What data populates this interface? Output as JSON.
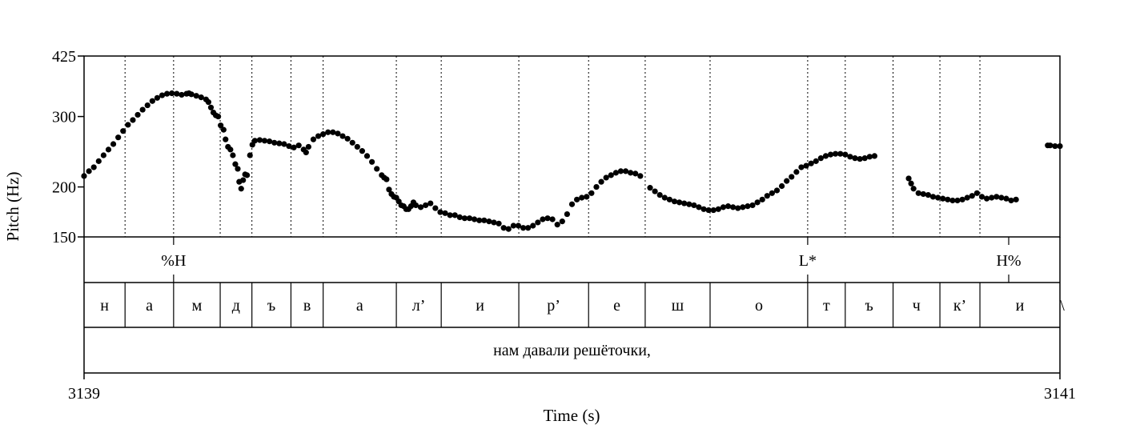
{
  "chart_data": {
    "type": "scatter",
    "xlabel": "Time (s)",
    "ylabel": "Pitch (Hz)",
    "xlim": [
      3139,
      3141
    ],
    "ylim": [
      150,
      425
    ],
    "y_scale": "log",
    "x_tick_labels": [
      "3139",
      "3141"
    ],
    "y_ticks": [
      {
        "value": 150,
        "label": "150"
      },
      {
        "value": 200,
        "label": "200"
      },
      {
        "value": 300,
        "label": "300"
      },
      {
        "value": 425,
        "label": "425"
      }
    ],
    "tone_tier": [
      {
        "time": 3139.1835,
        "label": "%H"
      },
      {
        "time": 3140.483,
        "label": "L*"
      },
      {
        "time": 3140.895,
        "label": "H%"
      }
    ],
    "segment_tier": [
      {
        "start": 3139.0,
        "end": 3139.084,
        "label": "н"
      },
      {
        "start": 3139.084,
        "end": 3139.1835,
        "label": "а"
      },
      {
        "start": 3139.1835,
        "end": 3139.279,
        "label": "м"
      },
      {
        "start": 3139.279,
        "end": 3139.344,
        "label": "д"
      },
      {
        "start": 3139.344,
        "end": 3139.424,
        "label": "ъ"
      },
      {
        "start": 3139.424,
        "end": 3139.49,
        "label": "в"
      },
      {
        "start": 3139.49,
        "end": 3139.64,
        "label": "а"
      },
      {
        "start": 3139.64,
        "end": 3139.732,
        "label": "л’"
      },
      {
        "start": 3139.732,
        "end": 3139.891,
        "label": "и"
      },
      {
        "start": 3139.891,
        "end": 3140.034,
        "label": "р’"
      },
      {
        "start": 3140.034,
        "end": 3140.15,
        "label": "е"
      },
      {
        "start": 3140.15,
        "end": 3140.283,
        "label": "ш"
      },
      {
        "start": 3140.283,
        "end": 3140.483,
        "label": "о"
      },
      {
        "start": 3140.483,
        "end": 3140.56,
        "label": "т"
      },
      {
        "start": 3140.56,
        "end": 3140.658,
        "label": "ъ"
      },
      {
        "start": 3140.658,
        "end": 3140.754,
        "label": "ч"
      },
      {
        "start": 3140.754,
        "end": 3140.836,
        "label": "к’"
      },
      {
        "start": 3140.836,
        "end": 3141.0,
        "label": "и"
      }
    ],
    "trailing_mark": "\\",
    "word_tier": [
      {
        "start": 3139.0,
        "end": 3141.0,
        "label": "нам давали решёточки,"
      }
    ],
    "series": [
      {
        "points": [
          [
            3139.0,
            213
          ],
          [
            3139.01,
            219
          ],
          [
            3139.02,
            224
          ],
          [
            3139.03,
            232
          ],
          [
            3139.04,
            240
          ],
          [
            3139.05,
            248
          ],
          [
            3139.06,
            256
          ],
          [
            3139.07,
            266
          ],
          [
            3139.08,
            276
          ],
          [
            3139.09,
            286
          ],
          [
            3139.1,
            294
          ],
          [
            3139.11,
            303
          ],
          [
            3139.12,
            312
          ],
          [
            3139.13,
            320
          ],
          [
            3139.14,
            328
          ],
          [
            3139.15,
            334
          ],
          [
            3139.16,
            339
          ],
          [
            3139.17,
            342
          ],
          [
            3139.18,
            343
          ],
          [
            3139.19,
            342
          ],
          [
            3139.2,
            340
          ],
          [
            3139.21,
            342
          ],
          [
            3139.215,
            343
          ],
          [
            3139.22,
            341
          ],
          [
            3139.23,
            338
          ],
          [
            3139.24,
            335
          ],
          [
            3139.25,
            331
          ],
          [
            3139.255,
            326
          ],
          [
            3139.26,
            316
          ],
          [
            3139.265,
            307
          ],
          [
            3139.27,
            302
          ],
          [
            3139.275,
            300
          ],
          [
            3139.28,
            285
          ],
          [
            3139.286,
            278
          ],
          [
            3139.29,
            263
          ],
          [
            3139.295,
            252
          ],
          [
            3139.3,
            248
          ],
          [
            3139.305,
            240
          ],
          [
            3139.31,
            228
          ],
          [
            3139.315,
            222
          ],
          [
            3139.318,
            206
          ],
          [
            3139.322,
            198
          ],
          [
            3139.326,
            208
          ],
          [
            3139.33,
            215
          ],
          [
            3139.334,
            214
          ],
          [
            3139.34,
            240
          ],
          [
            3139.345,
            255
          ],
          [
            3139.35,
            261
          ],
          [
            3139.36,
            262
          ],
          [
            3139.37,
            261
          ],
          [
            3139.38,
            260
          ],
          [
            3139.39,
            258
          ],
          [
            3139.4,
            257
          ],
          [
            3139.41,
            256
          ],
          [
            3139.42,
            253
          ],
          [
            3139.43,
            251
          ],
          [
            3139.44,
            254
          ],
          [
            3139.45,
            248
          ],
          [
            3139.455,
            244
          ],
          [
            3139.46,
            252
          ],
          [
            3139.47,
            263
          ],
          [
            3139.48,
            268
          ],
          [
            3139.49,
            271
          ],
          [
            3139.5,
            274
          ],
          [
            3139.51,
            274
          ],
          [
            3139.52,
            272
          ],
          [
            3139.53,
            268
          ],
          [
            3139.54,
            264
          ],
          [
            3139.55,
            258
          ],
          [
            3139.56,
            252
          ],
          [
            3139.57,
            246
          ],
          [
            3139.58,
            239
          ],
          [
            3139.59,
            231
          ],
          [
            3139.6,
            222
          ],
          [
            3139.61,
            214
          ],
          [
            3139.615,
            211
          ],
          [
            3139.62,
            209
          ],
          [
            3139.625,
            197
          ],
          [
            3139.63,
            192
          ],
          [
            3139.635,
            189
          ],
          [
            3139.64,
            188
          ],
          [
            3139.645,
            184
          ],
          [
            3139.65,
            180
          ],
          [
            3139.655,
            179
          ],
          [
            3139.66,
            176
          ],
          [
            3139.665,
            176
          ],
          [
            3139.67,
            179
          ],
          [
            3139.675,
            183
          ],
          [
            3139.68,
            180
          ],
          [
            3139.69,
            178
          ],
          [
            3139.7,
            180
          ],
          [
            3139.71,
            182
          ],
          [
            3139.72,
            177
          ],
          [
            3139.73,
            173
          ],
          [
            3139.74,
            172
          ],
          [
            3139.75,
            170
          ],
          [
            3139.76,
            170
          ],
          [
            3139.77,
            168
          ],
          [
            3139.78,
            167
          ],
          [
            3139.79,
            167
          ],
          [
            3139.8,
            166
          ],
          [
            3139.81,
            165
          ],
          [
            3139.82,
            165
          ],
          [
            3139.83,
            164
          ],
          [
            3139.84,
            163
          ],
          [
            3139.85,
            162
          ],
          [
            3139.86,
            158
          ],
          [
            3139.87,
            157
          ],
          [
            3139.88,
            160
          ],
          [
            3139.89,
            160
          ],
          [
            3139.9,
            158
          ],
          [
            3139.91,
            158
          ],
          [
            3139.92,
            160
          ],
          [
            3139.93,
            163
          ],
          [
            3139.94,
            166
          ],
          [
            3139.95,
            167
          ],
          [
            3139.96,
            166
          ],
          [
            3139.97,
            161
          ],
          [
            3139.98,
            164
          ],
          [
            3139.99,
            171
          ],
          [
            3140.0,
            181
          ],
          [
            3140.01,
            186
          ],
          [
            3140.02,
            188
          ],
          [
            3140.03,
            189
          ],
          [
            3140.04,
            193
          ],
          [
            3140.05,
            200
          ],
          [
            3140.06,
            206
          ],
          [
            3140.07,
            211
          ],
          [
            3140.08,
            214
          ],
          [
            3140.09,
            217
          ],
          [
            3140.1,
            219
          ],
          [
            3140.11,
            219
          ],
          [
            3140.12,
            217
          ],
          [
            3140.13,
            216
          ],
          [
            3140.14,
            213
          ],
          [
            3140.16,
            199
          ],
          [
            3140.17,
            195
          ],
          [
            3140.18,
            191
          ],
          [
            3140.19,
            188
          ],
          [
            3140.2,
            186
          ],
          [
            3140.21,
            184
          ],
          [
            3140.22,
            183
          ],
          [
            3140.23,
            182
          ],
          [
            3140.24,
            181
          ],
          [
            3140.25,
            180
          ],
          [
            3140.26,
            178
          ],
          [
            3140.27,
            176
          ],
          [
            3140.28,
            175
          ],
          [
            3140.29,
            175
          ],
          [
            3140.3,
            176
          ],
          [
            3140.31,
            178
          ],
          [
            3140.32,
            179
          ],
          [
            3140.33,
            178
          ],
          [
            3140.34,
            177
          ],
          [
            3140.35,
            178
          ],
          [
            3140.36,
            179
          ],
          [
            3140.37,
            180
          ],
          [
            3140.38,
            183
          ],
          [
            3140.39,
            186
          ],
          [
            3140.4,
            190
          ],
          [
            3140.41,
            193
          ],
          [
            3140.42,
            196
          ],
          [
            3140.43,
            201
          ],
          [
            3140.44,
            207
          ],
          [
            3140.45,
            212
          ],
          [
            3140.46,
            218
          ],
          [
            3140.47,
            224
          ],
          [
            3140.48,
            226
          ],
          [
            3140.49,
            229
          ],
          [
            3140.5,
            232
          ],
          [
            3140.51,
            236
          ],
          [
            3140.52,
            239
          ],
          [
            3140.53,
            241
          ],
          [
            3140.54,
            242
          ],
          [
            3140.55,
            242
          ],
          [
            3140.56,
            241
          ],
          [
            3140.57,
            238
          ],
          [
            3140.58,
            236
          ],
          [
            3140.59,
            235
          ],
          [
            3140.6,
            236
          ],
          [
            3140.61,
            238
          ],
          [
            3140.62,
            239
          ],
          [
            3140.69,
            210
          ],
          [
            3140.695,
            204
          ],
          [
            3140.7,
            198
          ],
          [
            3140.71,
            193
          ],
          [
            3140.72,
            192
          ],
          [
            3140.73,
            191
          ],
          [
            3140.74,
            189
          ],
          [
            3140.75,
            188
          ],
          [
            3140.76,
            187
          ],
          [
            3140.77,
            186
          ],
          [
            3140.78,
            185
          ],
          [
            3140.79,
            185
          ],
          [
            3140.8,
            186
          ],
          [
            3140.81,
            188
          ],
          [
            3140.82,
            190
          ],
          [
            3140.83,
            193
          ],
          [
            3140.84,
            189
          ],
          [
            3140.85,
            187
          ],
          [
            3140.86,
            188
          ],
          [
            3140.87,
            189
          ],
          [
            3140.88,
            188
          ],
          [
            3140.89,
            187
          ],
          [
            3140.9,
            185
          ],
          [
            3140.91,
            186
          ],
          [
            3140.975,
            254
          ],
          [
            3140.98,
            254
          ],
          [
            3140.99,
            253
          ],
          [
            3141.0,
            253
          ]
        ]
      }
    ]
  }
}
